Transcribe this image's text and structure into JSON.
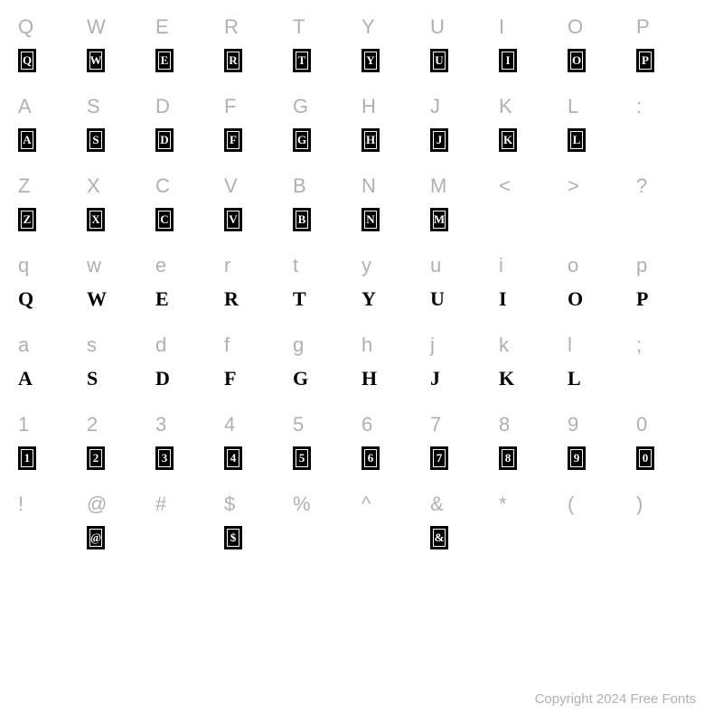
{
  "copyright": "Copyright 2024 Free Fonts",
  "rows": [
    {
      "style": "boxed",
      "cells": [
        {
          "key": "Q",
          "glyph": "Q",
          "has": true
        },
        {
          "key": "W",
          "glyph": "W",
          "has": true
        },
        {
          "key": "E",
          "glyph": "E",
          "has": true
        },
        {
          "key": "R",
          "glyph": "R",
          "has": true
        },
        {
          "key": "T",
          "glyph": "T",
          "has": true
        },
        {
          "key": "Y",
          "glyph": "Y",
          "has": true
        },
        {
          "key": "U",
          "glyph": "U",
          "has": true
        },
        {
          "key": "I",
          "glyph": "I",
          "has": true
        },
        {
          "key": "O",
          "glyph": "O",
          "has": true
        },
        {
          "key": "P",
          "glyph": "P",
          "has": true
        }
      ]
    },
    {
      "style": "boxed",
      "cells": [
        {
          "key": "A",
          "glyph": "A",
          "has": true
        },
        {
          "key": "S",
          "glyph": "S",
          "has": true
        },
        {
          "key": "D",
          "glyph": "D",
          "has": true
        },
        {
          "key": "F",
          "glyph": "F",
          "has": true
        },
        {
          "key": "G",
          "glyph": "G",
          "has": true
        },
        {
          "key": "H",
          "glyph": "H",
          "has": true
        },
        {
          "key": "J",
          "glyph": "J",
          "has": true
        },
        {
          "key": "K",
          "glyph": "K",
          "has": true
        },
        {
          "key": "L",
          "glyph": "L",
          "has": true
        },
        {
          "key": ":",
          "glyph": "",
          "has": false
        }
      ]
    },
    {
      "style": "boxed",
      "cells": [
        {
          "key": "Z",
          "glyph": "Z",
          "has": true
        },
        {
          "key": "X",
          "glyph": "X",
          "has": true
        },
        {
          "key": "C",
          "glyph": "C",
          "has": true
        },
        {
          "key": "V",
          "glyph": "V",
          "has": true
        },
        {
          "key": "B",
          "glyph": "B",
          "has": true
        },
        {
          "key": "N",
          "glyph": "N",
          "has": true
        },
        {
          "key": "M",
          "glyph": "M",
          "has": true
        },
        {
          "key": "<",
          "glyph": "",
          "has": false
        },
        {
          "key": ">",
          "glyph": "",
          "has": false
        },
        {
          "key": "?",
          "glyph": "",
          "has": false
        }
      ]
    },
    {
      "style": "decorative",
      "cells": [
        {
          "key": "q",
          "glyph": "Q",
          "has": true
        },
        {
          "key": "w",
          "glyph": "W",
          "has": true
        },
        {
          "key": "e",
          "glyph": "E",
          "has": true
        },
        {
          "key": "r",
          "glyph": "R",
          "has": true
        },
        {
          "key": "t",
          "glyph": "T",
          "has": true
        },
        {
          "key": "y",
          "glyph": "Y",
          "has": true
        },
        {
          "key": "u",
          "glyph": "U",
          "has": true
        },
        {
          "key": "i",
          "glyph": "I",
          "has": true
        },
        {
          "key": "o",
          "glyph": "O",
          "has": true
        },
        {
          "key": "p",
          "glyph": "P",
          "has": true
        }
      ]
    },
    {
      "style": "decorative",
      "cells": [
        {
          "key": "a",
          "glyph": "A",
          "has": true
        },
        {
          "key": "s",
          "glyph": "S",
          "has": true
        },
        {
          "key": "d",
          "glyph": "D",
          "has": true
        },
        {
          "key": "f",
          "glyph": "F",
          "has": true
        },
        {
          "key": "g",
          "glyph": "G",
          "has": true
        },
        {
          "key": "h",
          "glyph": "H",
          "has": true
        },
        {
          "key": "j",
          "glyph": "J",
          "has": true
        },
        {
          "key": "k",
          "glyph": "K",
          "has": true
        },
        {
          "key": "l",
          "glyph": "L",
          "has": true
        },
        {
          "key": ";",
          "glyph": "",
          "has": false
        }
      ]
    },
    {
      "style": "boxed",
      "cells": [
        {
          "key": "1",
          "glyph": "1",
          "has": true
        },
        {
          "key": "2",
          "glyph": "2",
          "has": true
        },
        {
          "key": "3",
          "glyph": "3",
          "has": true
        },
        {
          "key": "4",
          "glyph": "4",
          "has": true
        },
        {
          "key": "5",
          "glyph": "5",
          "has": true
        },
        {
          "key": "6",
          "glyph": "6",
          "has": true
        },
        {
          "key": "7",
          "glyph": "7",
          "has": true
        },
        {
          "key": "8",
          "glyph": "8",
          "has": true
        },
        {
          "key": "9",
          "glyph": "9",
          "has": true
        },
        {
          "key": "0",
          "glyph": "0",
          "has": true
        }
      ]
    },
    {
      "style": "boxed",
      "cells": [
        {
          "key": "!",
          "glyph": "",
          "has": false
        },
        {
          "key": "@",
          "glyph": "@",
          "has": true
        },
        {
          "key": "#",
          "glyph": "",
          "has": false
        },
        {
          "key": "$",
          "glyph": "$",
          "has": true
        },
        {
          "key": "%",
          "glyph": "",
          "has": false
        },
        {
          "key": "^",
          "glyph": "",
          "has": false
        },
        {
          "key": "&",
          "glyph": "&",
          "has": true
        },
        {
          "key": "*",
          "glyph": "",
          "has": false
        },
        {
          "key": "(",
          "glyph": "",
          "has": false
        },
        {
          "key": ")",
          "glyph": "",
          "has": false
        }
      ]
    }
  ]
}
